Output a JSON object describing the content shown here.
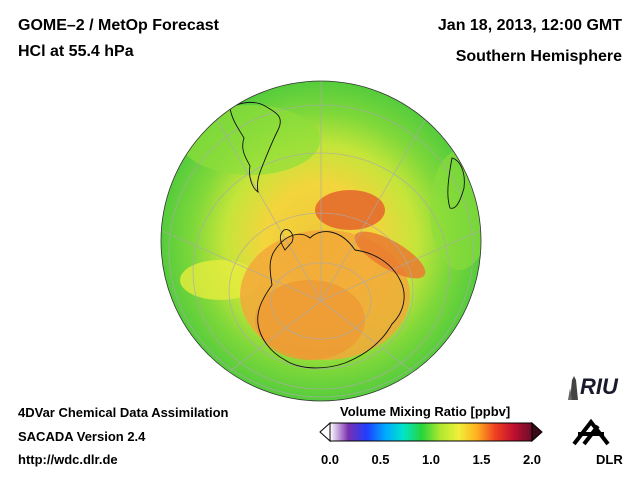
{
  "header": {
    "title": "GOME–2 / MetOp Forecast",
    "subtitle": "HCl at 55.4 hPa",
    "date": "Jan 18, 2013, 12:00 GMT",
    "hemisphere": "Southern Hemisphere"
  },
  "footer": {
    "line1": "4DVar Chemical Data Assimilation",
    "line2": "SACADA Version 2.4",
    "line3": "http://wdc.dlr.de"
  },
  "colorbar": {
    "title": "Volume Mixing Ratio [ppbv]",
    "ticks": [
      "0.0",
      "0.5",
      "1.0",
      "1.5",
      "2.0"
    ],
    "min": 0.0,
    "max": 2.0,
    "colors": [
      "#ffffff",
      "#7a2fb0",
      "#1f3dff",
      "#00a8ff",
      "#00e5c8",
      "#27d43a",
      "#aee82f",
      "#f0f03a",
      "#ffb020",
      "#f04020",
      "#c01030",
      "#6a0d2a"
    ]
  },
  "logos": {
    "riu": "RIU",
    "dlr": "DLR"
  }
}
